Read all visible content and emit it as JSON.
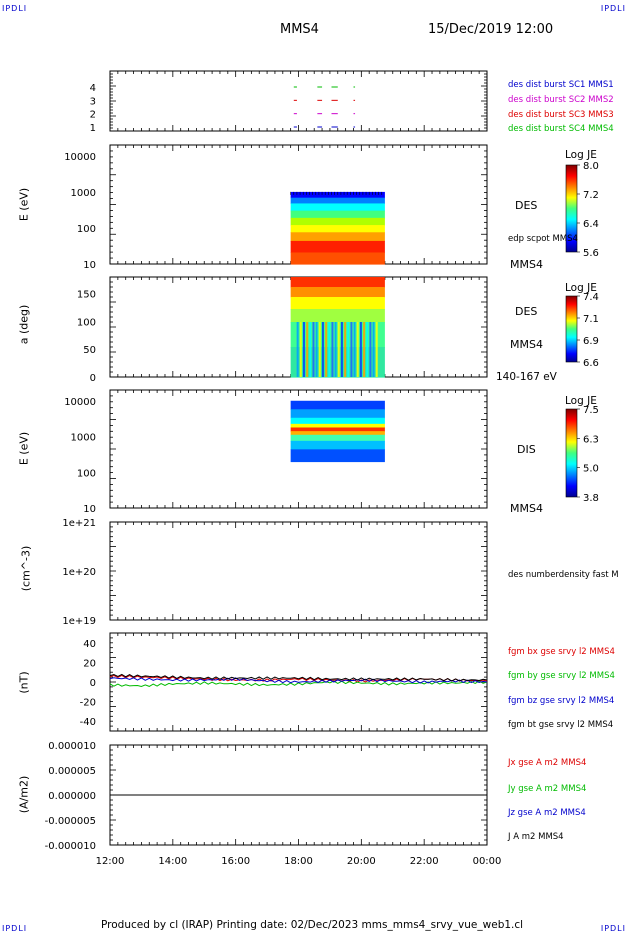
{
  "corners": {
    "tl": "IPDLI",
    "tr": "IPDLI",
    "bl": "IPDLI",
    "br": "IPDLI"
  },
  "header": {
    "spacecraft": "MMS4",
    "date": "15/Dec/2019 12:00"
  },
  "footer": {
    "text": "Produced by cl (IRAP)   Printing date: 02/Dec/2023   mms_mms4_srvy_vue_web1.cl"
  },
  "colors": {
    "mms1": "#0000cc",
    "mms2": "#cc00cc",
    "mms3": "#dd0000",
    "mms4": "#00bb00",
    "black": "#000000"
  },
  "chart_data": [
    {
      "type": "scatter",
      "panel": "burst",
      "yticks": [
        "4",
        "3",
        "2",
        "1"
      ],
      "legend": [
        {
          "label": "des dist burst SC1 MMS1",
          "color_key": "mms1",
          "y": 1
        },
        {
          "label": "des dist burst SC2 MMS2",
          "color_key": "mms2",
          "y": 2
        },
        {
          "label": "des dist burst SC3 MMS3",
          "color_key": "mms3",
          "y": 3
        },
        {
          "label": "des dist burst SC4 MMS4",
          "color_key": "mms4",
          "y": 4
        }
      ],
      "segments_hours": [
        [
          17.85,
          17.95
        ],
        [
          18.6,
          18.75
        ],
        [
          19.05,
          19.25
        ],
        [
          19.75,
          19.8
        ]
      ]
    },
    {
      "type": "heatmap",
      "panel": "des-energy",
      "ylabel": "E (eV)",
      "yscale": "log",
      "ylim": [
        10,
        20000
      ],
      "yticks": [
        "10000",
        "1000",
        "100",
        "10"
      ],
      "x_range_hours": [
        17.75,
        20.75
      ],
      "y_range": [
        10,
        1000
      ],
      "labels": [
        "DES",
        "edp scpot MMS4",
        "MMS4"
      ],
      "colorbar": {
        "title": "Log JE",
        "ticks": [
          "8.0",
          "7.2",
          "6.4",
          "5.6"
        ]
      }
    },
    {
      "type": "heatmap",
      "panel": "des-pitch",
      "ylabel": "a (deg)",
      "ylim": [
        0,
        180
      ],
      "yticks": [
        "150",
        "100",
        "50",
        "0"
      ],
      "x_range_hours": [
        17.75,
        20.75
      ],
      "labels": [
        "DES",
        "MMS4",
        "140-167 eV"
      ],
      "colorbar": {
        "title": "Log JE",
        "ticks": [
          "7.4",
          "7.1",
          "6.9",
          "6.6"
        ]
      }
    },
    {
      "type": "heatmap",
      "panel": "dis-energy",
      "ylabel": "E (eV)",
      "yscale": "log",
      "ylim": [
        10,
        20000
      ],
      "yticks": [
        "10000",
        "1000",
        "100",
        "10"
      ],
      "x_range_hours": [
        17.75,
        20.75
      ],
      "y_range": [
        200,
        10000
      ],
      "labels": [
        "DIS",
        "MMS4"
      ],
      "colorbar": {
        "title": "Log JE",
        "ticks": [
          "7.5",
          "6.3",
          "5.0",
          "3.8"
        ]
      }
    },
    {
      "type": "line",
      "panel": "density",
      "ylabel": "(cm^-3)",
      "yscale": "log",
      "ylim": [
        1e+19,
        1e+21
      ],
      "yticks": [
        "1e+21",
        "1e+20",
        "1e+19"
      ],
      "legend": [
        {
          "label": "des numberdensity fast M",
          "color_key": "black"
        }
      ]
    },
    {
      "type": "line",
      "panel": "fgm",
      "ylabel": "(nT)",
      "ylim": [
        -50,
        50
      ],
      "yticks": [
        "40",
        "20",
        "0",
        "-20",
        "-40"
      ],
      "series": [
        {
          "name": "fgm bx gse srvy l2 MMS4",
          "color_key": "mms3",
          "x": [
            12,
            13,
            14,
            15,
            16,
            17,
            18,
            19,
            20,
            21,
            22,
            23,
            24
          ],
          "y": [
            6,
            5,
            4,
            3,
            2,
            2,
            3,
            2,
            1,
            2,
            3,
            2,
            1
          ]
        },
        {
          "name": "fgm by gse srvy l2 MMS4",
          "color_key": "mms4",
          "x": [
            12,
            13,
            14,
            15,
            16,
            17,
            18,
            19,
            20,
            21,
            22,
            23,
            24
          ],
          "y": [
            -3,
            -4,
            -2,
            -1,
            -2,
            -3,
            -2,
            0,
            -1,
            -2,
            -1,
            -1,
            0
          ]
        },
        {
          "name": "fgm bz gse srvy l2 MMS4",
          "color_key": "mms1",
          "x": [
            12,
            13,
            14,
            15,
            16,
            17,
            18,
            19,
            20,
            21,
            22,
            23,
            24
          ],
          "y": [
            4,
            3,
            2,
            2,
            3,
            1,
            0,
            1,
            2,
            1,
            0,
            1,
            0
          ]
        },
        {
          "name": "fgm bt gse srvy l2 MMS4",
          "color_key": "black",
          "x": [
            12,
            13,
            14,
            15,
            16,
            17,
            18,
            19,
            20,
            21,
            22,
            23,
            24
          ],
          "y": [
            7,
            6,
            5,
            4,
            4,
            4,
            4,
            3,
            3,
            3,
            3,
            2,
            2
          ]
        }
      ]
    },
    {
      "type": "line",
      "panel": "current",
      "ylabel": "(A/m2)",
      "ylim": [
        -1e-05,
        1e-05
      ],
      "yticks": [
        "0.000010",
        "0.000005",
        "0.000000",
        "-0.000005",
        "-0.000010"
      ],
      "series": [
        {
          "name": "Jx gse A m2 MMS4",
          "color_key": "mms3",
          "x": [
            12,
            24
          ],
          "y": [
            0,
            0
          ]
        },
        {
          "name": "Jy gse A m2 MMS4",
          "color_key": "mms4",
          "x": [
            12,
            24
          ],
          "y": [
            0,
            0
          ]
        },
        {
          "name": "Jz gse A m2 MMS4",
          "color_key": "mms1",
          "x": [
            12,
            24
          ],
          "y": [
            0,
            0
          ]
        },
        {
          "name": "J A m2 MMS4",
          "color_key": "black",
          "x": [
            12,
            24
          ],
          "y": [
            0,
            0
          ]
        }
      ]
    }
  ],
  "x_axis": {
    "range_hours": [
      12,
      24
    ],
    "ticks": [
      "12:00",
      "14:00",
      "16:00",
      "18:00",
      "20:00",
      "22:00",
      "00:00"
    ]
  }
}
